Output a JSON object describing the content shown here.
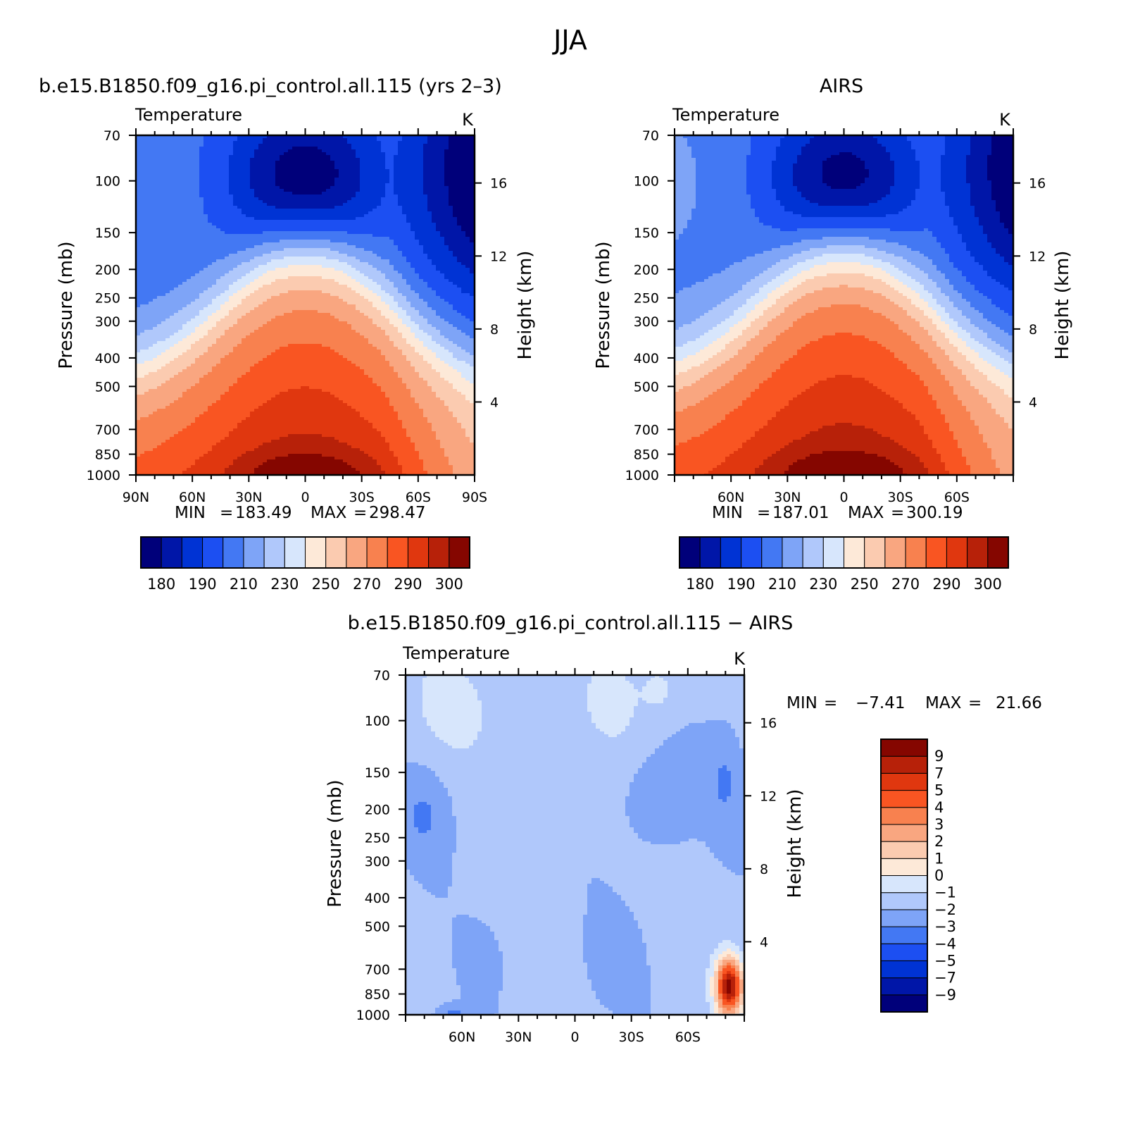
{
  "figure": {
    "title": "JJA",
    "diff_title": "b.e15.B1850.f09_g16.pi_control.all.115 − AIRS"
  },
  "abs_colors": [
    "#00007a",
    "#0016a8",
    "#0033d4",
    "#1c4ff2",
    "#4378f3",
    "#7ea4f7",
    "#b0c8fb",
    "#d7e6fc",
    "#fde9d8",
    "#fbcbb0",
    "#f9a680",
    "#f8814f",
    "#f95522",
    "#e0370f",
    "#b72109",
    "#850600"
  ],
  "abs_tick_labels": [
    "180",
    "190",
    "210",
    "230",
    "250",
    "270",
    "290",
    "300"
  ],
  "diff_colors": [
    "#00007a",
    "#0016a8",
    "#0033d4",
    "#1c4ff2",
    "#4378f3",
    "#7ea4f7",
    "#b0c8fb",
    "#d7e6fc",
    "#fde9d8",
    "#fbcbb0",
    "#f9a680",
    "#f8814f",
    "#f95522",
    "#e0370f",
    "#b72109",
    "#850600"
  ],
  "diff_tick_labels": [
    "9",
    "7",
    "5",
    "4",
    "3",
    "2",
    "1",
    "0",
    "−1",
    "−2",
    "−3",
    "−4",
    "−5",
    "−7",
    "−9"
  ],
  "chart_data": [
    {
      "type": "heatmap",
      "title": "b.e15.B1850.f09_g16.pi_control.all.115 (yrs 2–3)",
      "subtitle_left": "Temperature",
      "subtitle_right": "K",
      "ylabel": "Pressure (mb)",
      "ylabel_right": "Height (km)",
      "xticks": [
        "90N",
        "60N",
        "30N",
        "0",
        "30S",
        "60S",
        "90S"
      ],
      "yticks": [
        "70",
        "100",
        "150",
        "200",
        "250",
        "300",
        "400",
        "500",
        "700",
        "850",
        "1000"
      ],
      "yticks_right": [
        "16",
        "12",
        "8",
        "4"
      ],
      "stats": {
        "min_label": "MIN",
        "min": "183.49",
        "max_label": "MAX",
        "max": "298.47"
      },
      "value_range": [
        183.49,
        298.47
      ],
      "xlim": [
        90,
        -90
      ],
      "ylim": [
        1000,
        70
      ],
      "y_scale": "log"
    },
    {
      "type": "heatmap",
      "title": "AIRS",
      "subtitle_left": "Temperature",
      "subtitle_right": "K",
      "ylabel": "Pressure (mb)",
      "ylabel_right": "Height (km)",
      "xticks": [
        "60N",
        "30N",
        "0",
        "30S",
        "60S"
      ],
      "yticks": [
        "70",
        "100",
        "150",
        "200",
        "250",
        "300",
        "400",
        "500",
        "700",
        "850",
        "1000"
      ],
      "yticks_right": [
        "16",
        "12",
        "8",
        "4"
      ],
      "stats": {
        "min_label": "MIN",
        "min": "187.01",
        "max_label": "MAX",
        "max": "300.19"
      },
      "value_range": [
        187.01,
        300.19
      ],
      "xlim": [
        90,
        -90
      ],
      "ylim": [
        1000,
        70
      ],
      "y_scale": "log"
    },
    {
      "type": "heatmap",
      "subtitle_left": "Temperature",
      "subtitle_right": "K",
      "ylabel": "Pressure (mb)",
      "ylabel_right": "Height (km)",
      "xticks": [
        "60N",
        "30N",
        "0",
        "30S",
        "60S"
      ],
      "yticks": [
        "70",
        "100",
        "150",
        "200",
        "250",
        "300",
        "400",
        "500",
        "700",
        "850",
        "1000"
      ],
      "yticks_right": [
        "16",
        "12",
        "8",
        "4"
      ],
      "stats": {
        "min_label": "MIN",
        "min": "−7.41",
        "max_label": "MAX",
        "max": "21.66"
      },
      "value_range": [
        -7.41,
        21.66
      ],
      "xlim": [
        90,
        -90
      ],
      "ylim": [
        1000,
        70
      ],
      "y_scale": "log"
    }
  ]
}
